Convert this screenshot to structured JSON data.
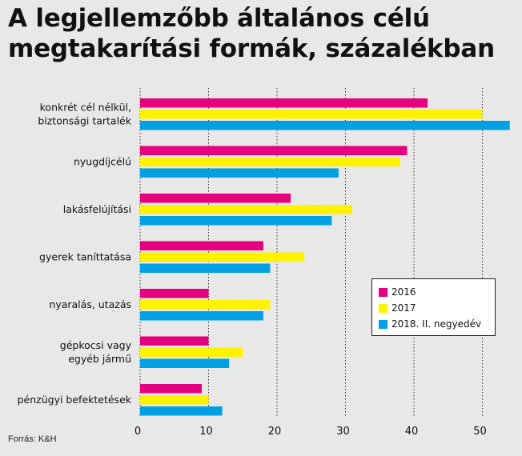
{
  "title_lines": [
    "A legjellemzőbb általános célú",
    "megtakarítási formák, százalékban"
  ],
  "source": "Forrás: K&H",
  "colors": {
    "background": "#e8e8e8",
    "s2016": "#e5007e",
    "s2017": "#fff200",
    "s2018": "#00a0e3",
    "grid": "#333333"
  },
  "legend": {
    "items": [
      {
        "label": "2016",
        "color": "#e5007e"
      },
      {
        "label": "2017",
        "color": "#fff200"
      },
      {
        "label": "2018. II. negyedév",
        "color": "#00a0e3"
      }
    ]
  },
  "chart_data": {
    "type": "bar",
    "orientation": "horizontal",
    "title": "A legjellemzőbb általános célú megtakarítási formák, százalékban",
    "categories": [
      [
        "konkrét cél nélkül,",
        "biztonsági tartalék"
      ],
      [
        "nyugdíjcélú"
      ],
      [
        "lakásfelújítási"
      ],
      [
        "gyerek taníttatása"
      ],
      [
        "nyaralás, utazás"
      ],
      [
        "gépkocsi vagy",
        "egyéb jármű"
      ],
      [
        "pénzügyi befektetések"
      ]
    ],
    "series": [
      {
        "name": "2016",
        "color": "#e5007e",
        "values": [
          42,
          39,
          22,
          18,
          10,
          10,
          9
        ]
      },
      {
        "name": "2017",
        "color": "#fff200",
        "values": [
          50,
          38,
          31,
          24,
          19,
          15,
          10
        ]
      },
      {
        "name": "2018. II. negyedév",
        "color": "#00a0e3",
        "values": [
          54,
          29,
          28,
          19,
          18,
          13,
          12
        ]
      }
    ],
    "xticks": [
      0,
      10,
      20,
      30,
      40,
      50
    ],
    "xlim": [
      0,
      54
    ],
    "grid": "vertical dotted",
    "legend_position": "right"
  }
}
